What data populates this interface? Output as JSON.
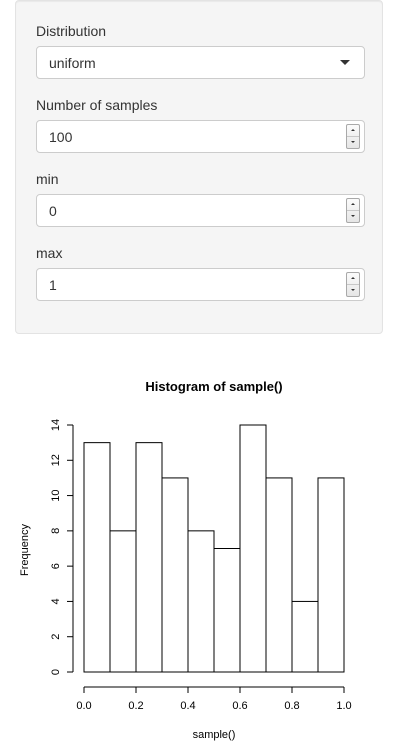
{
  "sidebar": {
    "distribution": {
      "label": "Distribution",
      "selected": "uniform"
    },
    "n_samples": {
      "label": "Number of samples",
      "value": "100"
    },
    "min": {
      "label": "min",
      "value": "0"
    },
    "max": {
      "label": "max",
      "value": "1"
    }
  },
  "icons": {
    "dropdown": "chevron-down-icon",
    "spinner_up": "spinner-up-icon",
    "spinner_down": "spinner-down-icon"
  },
  "chart_data": {
    "type": "bar",
    "title": "Histogram of sample()",
    "xlabel": "sample()",
    "ylabel": "Frequency",
    "bin_edges": [
      0.0,
      0.1,
      0.2,
      0.3,
      0.4,
      0.5,
      0.6,
      0.7,
      0.8,
      0.9,
      1.0
    ],
    "values": [
      13,
      8,
      13,
      11,
      8,
      7,
      14,
      11,
      4,
      11
    ],
    "xlim": [
      0.0,
      1.0
    ],
    "ylim": [
      0,
      14
    ],
    "x_ticks": [
      "0.0",
      "0.2",
      "0.4",
      "0.6",
      "0.8",
      "1.0"
    ],
    "x_tick_values": [
      0.0,
      0.2,
      0.4,
      0.6,
      0.8,
      1.0
    ],
    "y_ticks": [
      "0",
      "2",
      "4",
      "6",
      "8",
      "10",
      "12",
      "14"
    ],
    "y_tick_values": [
      0,
      2,
      4,
      6,
      8,
      10,
      12,
      14
    ],
    "grid": false,
    "bar_fill": "#ffffff",
    "bar_stroke": "#000000"
  }
}
